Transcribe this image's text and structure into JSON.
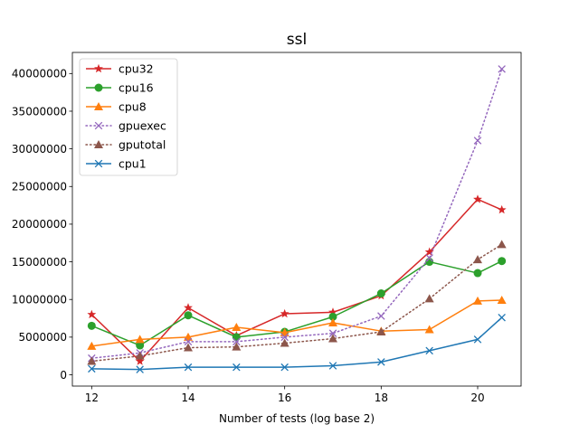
{
  "chart_data": {
    "type": "line",
    "title": "ssl",
    "xlabel": "Number of tests (log base 2)",
    "ylabel": "",
    "xlim": [
      11.6,
      20.9
    ],
    "ylim": [
      -1500000,
      42800000
    ],
    "x_ticks": [
      12,
      14,
      16,
      18,
      20
    ],
    "y_ticks": [
      0,
      5000000,
      10000000,
      15000000,
      20000000,
      25000000,
      30000000,
      35000000,
      40000000
    ],
    "grid": false,
    "legend_position": "top-left",
    "x": [
      12,
      13,
      14,
      15,
      16,
      17,
      18,
      19,
      20,
      20.5
    ],
    "series": [
      {
        "name": "cpu32",
        "color": "#d62728",
        "linestyle": "solid",
        "marker": "star",
        "values": [
          8000000,
          1800000,
          8900000,
          5200000,
          8100000,
          8300000,
          10500000,
          16300000,
          23300000,
          21900000
        ]
      },
      {
        "name": "cpu16",
        "color": "#2ca02c",
        "linestyle": "solid",
        "marker": "circle",
        "values": [
          6500000,
          3900000,
          7900000,
          5000000,
          5700000,
          7700000,
          10800000,
          15000000,
          13500000,
          15100000
        ]
      },
      {
        "name": "cpu8",
        "color": "#ff7f0e",
        "linestyle": "solid",
        "marker": "triangle",
        "values": [
          3800000,
          4700000,
          5000000,
          6300000,
          5600000,
          6900000,
          5800000,
          6000000,
          9800000,
          9900000
        ]
      },
      {
        "name": "gpuexec",
        "color": "#9467bd",
        "linestyle": "dotted",
        "marker": "x",
        "values": [
          2200000,
          2900000,
          4400000,
          4400000,
          5000000,
          5500000,
          7800000,
          15500000,
          31100000,
          40600000
        ]
      },
      {
        "name": "gputotal",
        "color": "#8c564b",
        "linestyle": "dotted",
        "marker": "triangle",
        "values": [
          1800000,
          2500000,
          3600000,
          3700000,
          4200000,
          4800000,
          5700000,
          10100000,
          15300000,
          17300000
        ]
      },
      {
        "name": "cpu1",
        "color": "#1f77b4",
        "linestyle": "solid",
        "marker": "x",
        "values": [
          800000,
          700000,
          1000000,
          1000000,
          1000000,
          1200000,
          1700000,
          3200000,
          4700000,
          7600000
        ]
      }
    ]
  }
}
